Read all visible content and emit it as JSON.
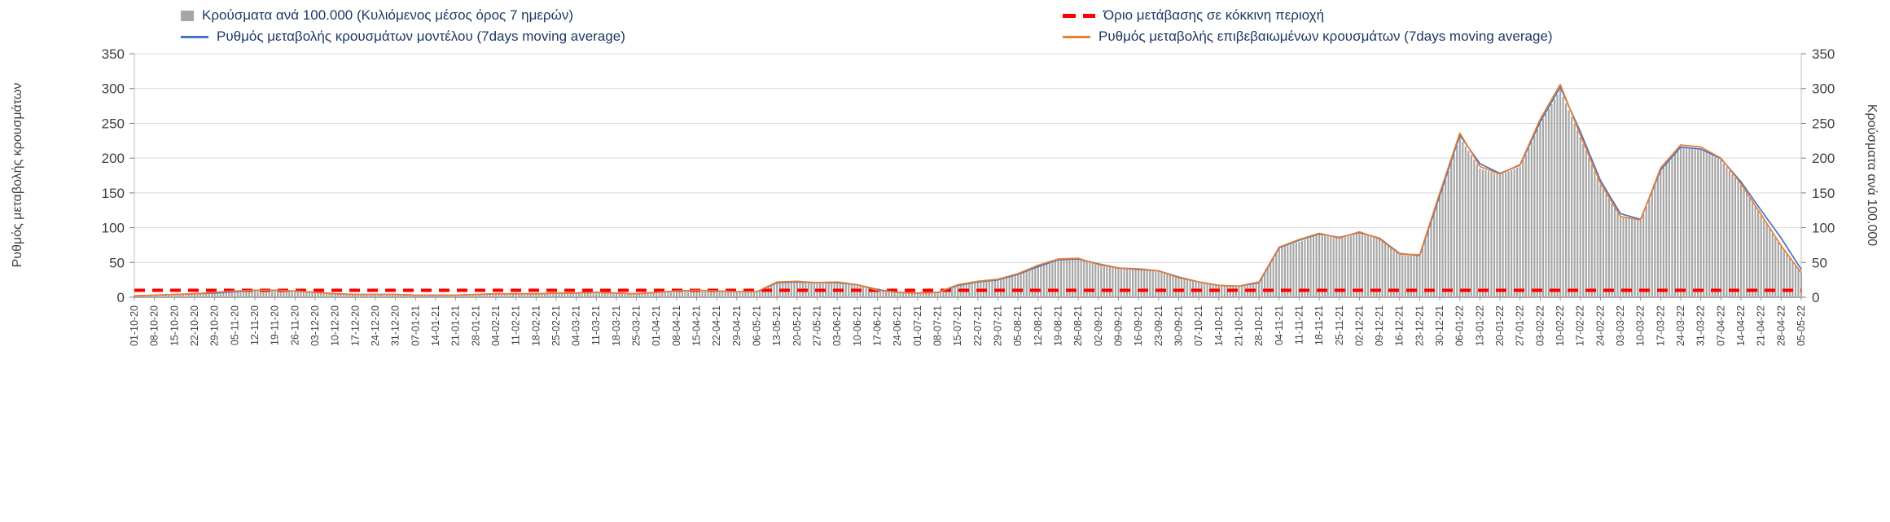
{
  "legend": {
    "items": [
      {
        "label": "Κρούσματα ανά 100.000 (Κυλιόμενος μέσος όρος 7 ημερών)",
        "marker": "bar",
        "color": "#a6a6a6"
      },
      {
        "label": "Όριο μετάβασης σε κόκκινη περιοχή",
        "marker": "dashed-line",
        "color": "#ff0000"
      },
      {
        "label": "Ρυθμός μεταβολής κρουσμάτων μοντέλου (7days moving average)",
        "marker": "line",
        "color": "#4472c4"
      },
      {
        "label": "Ρυθμός μεταβολής επιβεβαιωμένων κρουσμάτων (7days moving average)",
        "marker": "line",
        "color": "#ed7d31"
      }
    ]
  },
  "axes": {
    "left_title": "Ρυθμός μεταβολής κρουσμάτων",
    "right_title": "Κρούσματα ανά 100.000"
  },
  "chart_data": {
    "type": "bar",
    "note": "combined bar + line chart, dual identical axes 0-350, red dashed threshold at 10",
    "ylim": [
      0,
      350
    ],
    "yticks": [
      0,
      50,
      100,
      150,
      200,
      250,
      300,
      350
    ],
    "grid": true,
    "legend_position": "top",
    "x": [
      "01-10-20",
      "08-10-20",
      "15-10-20",
      "22-10-20",
      "29-10-20",
      "05-11-20",
      "12-11-20",
      "19-11-20",
      "26-11-20",
      "03-12-20",
      "10-12-20",
      "17-12-20",
      "24-12-20",
      "31-12-20",
      "07-01-21",
      "14-01-21",
      "21-01-21",
      "28-01-21",
      "04-02-21",
      "11-02-21",
      "18-02-21",
      "25-02-21",
      "04-03-21",
      "11-03-21",
      "18-03-21",
      "25-03-21",
      "01-04-21",
      "08-04-21",
      "15-04-21",
      "22-04-21",
      "29-04-21",
      "06-05-21",
      "13-05-21",
      "20-05-21",
      "27-05-21",
      "03-06-21",
      "10-06-21",
      "17-06-21",
      "24-06-21",
      "01-07-21",
      "08-07-21",
      "15-07-21",
      "22-07-21",
      "29-07-21",
      "05-08-21",
      "12-08-21",
      "19-08-21",
      "26-08-21",
      "02-09-21",
      "09-09-21",
      "16-09-21",
      "23-09-21",
      "30-09-21",
      "07-10-21",
      "14-10-21",
      "21-10-21",
      "28-10-21",
      "04-11-21",
      "11-11-21",
      "18-11-21",
      "25-11-21",
      "02-12-21",
      "09-12-21",
      "16-12-21",
      "23-12-21",
      "30-12-21",
      "06-01-22",
      "13-01-22",
      "20-01-22",
      "27-01-22",
      "03-02-22",
      "10-02-22",
      "17-02-22",
      "24-02-22",
      "03-03-22",
      "10-03-22",
      "17-03-22",
      "24-03-22",
      "31-03-22",
      "07-04-22",
      "14-04-22",
      "21-04-22",
      "28-04-22",
      "05-05-22"
    ],
    "series": [
      {
        "name": "Κρούσματα ανά 100.000 (Κυλιόμενος μέσος όρος 7 ημερών)",
        "type": "bar",
        "axis": "right",
        "color": "#a6a6a6",
        "values": [
          2,
          3,
          4,
          5,
          7,
          9,
          10,
          10,
          9,
          7,
          5,
          4,
          4,
          4,
          3,
          3,
          3,
          4,
          5,
          5,
          5,
          6,
          6,
          7,
          6,
          5,
          7,
          9,
          10,
          9,
          8,
          8,
          22,
          23,
          21,
          22,
          18,
          10,
          7,
          6,
          7,
          18,
          22,
          25,
          33,
          45,
          54,
          55,
          47,
          42,
          41,
          38,
          28,
          22,
          17,
          16,
          22,
          70,
          80,
          90,
          84,
          92,
          84,
          61,
          60,
          145,
          230,
          185,
          176,
          188,
          250,
          298,
          230,
          162,
          115,
          110,
          182,
          215,
          212,
          197,
          162,
          118,
          73,
          34
        ]
      },
      {
        "name": "Ρυθμός μεταβολής κρουσμάτων μοντέλου (7days moving average)",
        "type": "line",
        "axis": "left",
        "color": "#4472c4",
        "values": [
          2,
          3,
          4,
          5,
          6,
          8,
          10,
          10,
          9,
          7,
          5,
          4,
          4,
          4,
          3,
          3,
          3,
          4,
          5,
          5,
          5,
          6,
          6,
          7,
          6,
          5,
          7,
          9,
          10,
          9,
          8,
          8,
          21,
          22,
          21,
          21,
          18,
          11,
          7,
          6,
          7,
          17,
          22,
          25,
          33,
          44,
          54,
          55,
          48,
          42,
          40,
          38,
          29,
          22,
          17,
          16,
          21,
          71,
          82,
          91,
          86,
          93,
          85,
          63,
          60,
          146,
          233,
          192,
          178,
          190,
          252,
          302,
          238,
          168,
          120,
          112,
          183,
          216,
          213,
          199,
          166,
          125,
          85,
          40
        ]
      },
      {
        "name": "Ρυθμός μεταβολής επιβεβαιωμένων κρουσμάτων (7days moving average)",
        "type": "line",
        "axis": "left",
        "color": "#ed7d31",
        "values": [
          2,
          3,
          4,
          5,
          7,
          9,
          10,
          10,
          9,
          7,
          5,
          4,
          4,
          4,
          3,
          3,
          3,
          4,
          5,
          5,
          5,
          6,
          6,
          7,
          6,
          5,
          7,
          9,
          10,
          9,
          8,
          8,
          22,
          23,
          21,
          22,
          18,
          10,
          7,
          6,
          7,
          18,
          23,
          26,
          34,
          46,
          55,
          56,
          47,
          42,
          41,
          38,
          28,
          22,
          17,
          16,
          22,
          72,
          83,
          92,
          85,
          94,
          84,
          62,
          61,
          150,
          236,
          188,
          177,
          191,
          256,
          306,
          233,
          164,
          116,
          111,
          186,
          219,
          216,
          200,
          163,
          119,
          74,
          35
        ]
      },
      {
        "name": "Όριο μετάβασης σε κόκκινη περιοχή",
        "type": "threshold",
        "axis": "left",
        "color": "#ff0000",
        "value": 10
      }
    ]
  }
}
